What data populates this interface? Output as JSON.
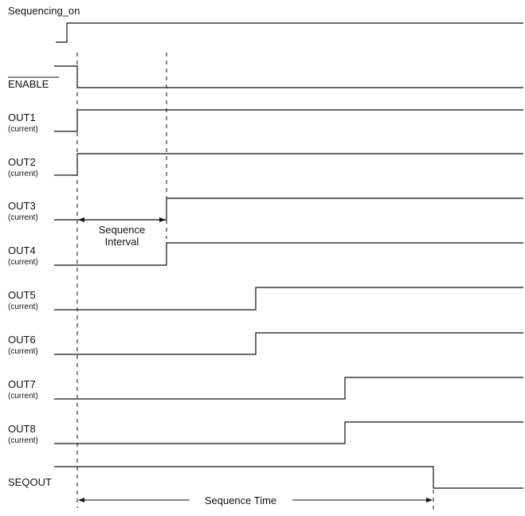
{
  "signals": [
    {
      "name": "Sequencing_on",
      "sub": "",
      "overbar": false
    },
    {
      "name": "ENABLE",
      "sub": "",
      "overbar": true
    },
    {
      "name": "OUT1",
      "sub": "(current)",
      "overbar": false
    },
    {
      "name": "OUT2",
      "sub": "(current)",
      "overbar": false
    },
    {
      "name": "OUT3",
      "sub": "(current)",
      "overbar": false
    },
    {
      "name": "OUT4",
      "sub": "(current)",
      "overbar": false
    },
    {
      "name": "OUT5",
      "sub": "(current)",
      "overbar": false
    },
    {
      "name": "OUT6",
      "sub": "(current)",
      "overbar": false
    },
    {
      "name": "OUT7",
      "sub": "(current)",
      "overbar": false
    },
    {
      "name": "OUT8",
      "sub": "(current)",
      "overbar": false
    },
    {
      "name": "SEQOUT",
      "sub": "",
      "overbar": false
    }
  ],
  "annotations": {
    "sequence_interval_line1": "Sequence",
    "sequence_interval_line2": "Interval",
    "sequence_time": "Sequence Time"
  }
}
